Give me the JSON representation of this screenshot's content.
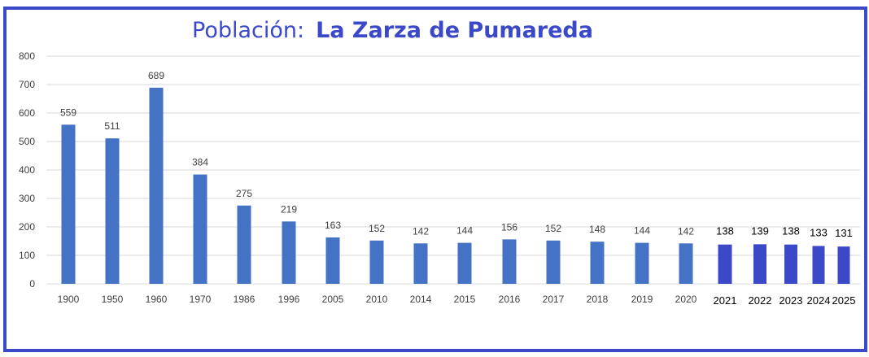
{
  "title": {
    "prefix": "Población:",
    "name": "La Zarza de Pumareda"
  },
  "colors": {
    "frame": "#3b48c8",
    "bar": "#4472c4",
    "bar_recent": "#3b48c8",
    "grid": "#d9d9d9",
    "text": "#404040"
  },
  "chart_data": {
    "type": "bar",
    "title": "Población:  La Zarza de Pumareda",
    "xlabel": "",
    "ylabel": "",
    "ylim": [
      0,
      800
    ],
    "yticks": [
      0,
      100,
      200,
      300,
      400,
      500,
      600,
      700,
      800
    ],
    "grid": true,
    "legend": "none",
    "categories": [
      "1900",
      "1950",
      "1960",
      "1970",
      "1986",
      "1996",
      "2005",
      "2010",
      "2014",
      "2015",
      "2016",
      "2017",
      "2018",
      "2019",
      "2020",
      "2021",
      "2022",
      "2023",
      "2024",
      "2025"
    ],
    "values": [
      559,
      511,
      689,
      384,
      275,
      219,
      163,
      152,
      142,
      144,
      156,
      152,
      148,
      144,
      142,
      138,
      139,
      138,
      133,
      131
    ]
  }
}
